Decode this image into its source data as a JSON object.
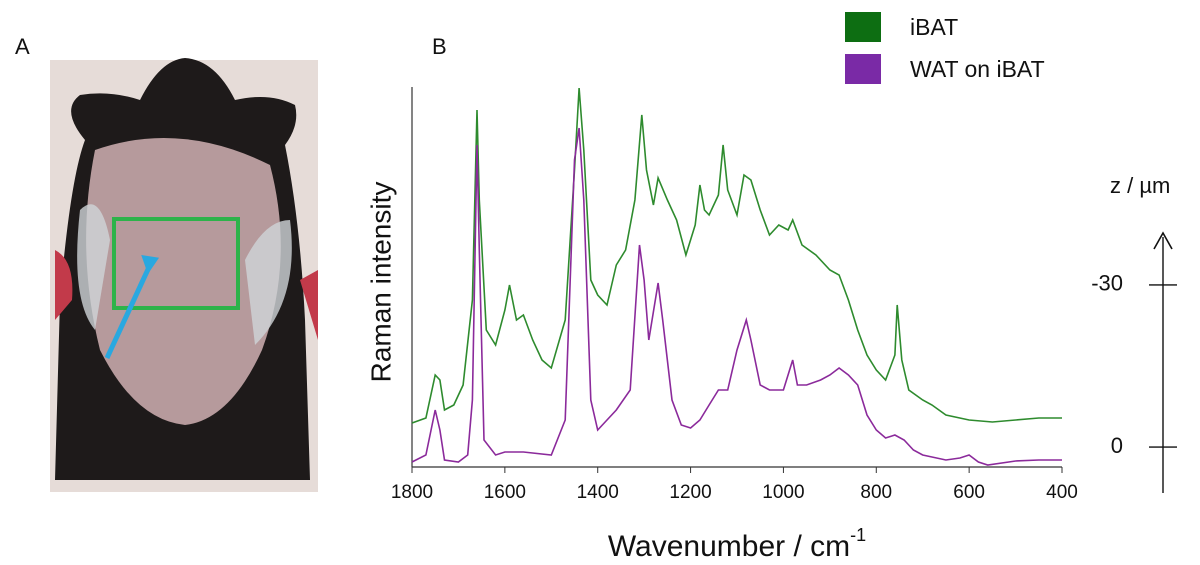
{
  "panel_labels": [
    "A",
    "B"
  ],
  "chart_data": [
    {
      "type": "line",
      "y_label": "Raman intensity",
      "x_label": {
        "text": "Wavenumber / cm",
        "superscript": "-1"
      },
      "xlim": [
        1800,
        400
      ],
      "xticks": [
        1800,
        1600,
        1400,
        1200,
        1000,
        800,
        600,
        400
      ],
      "ylim": [
        0,
        380
      ],
      "series": [
        {
          "name": "iBAT",
          "color": "#2e8b2e",
          "legend_color": "#0d6e12",
          "x": [
            1800,
            1770,
            1750,
            1740,
            1730,
            1710,
            1690,
            1670,
            1660,
            1655,
            1640,
            1620,
            1600,
            1590,
            1575,
            1560,
            1540,
            1520,
            1500,
            1470,
            1450,
            1440,
            1430,
            1415,
            1400,
            1380,
            1360,
            1340,
            1320,
            1305,
            1295,
            1280,
            1270,
            1250,
            1230,
            1210,
            1190,
            1180,
            1170,
            1160,
            1140,
            1130,
            1120,
            1100,
            1085,
            1070,
            1050,
            1030,
            1010,
            990,
            980,
            960,
            930,
            900,
            880,
            860,
            840,
            820,
            800,
            780,
            760,
            755,
            745,
            730,
            700,
            680,
            650,
            600,
            550,
            500,
            450,
            400
          ],
          "values": [
            44,
            49,
            92,
            87,
            57,
            62,
            82,
            167,
            357,
            267,
            137,
            122,
            157,
            182,
            147,
            152,
            127,
            107,
            99,
            147,
            297,
            379,
            317,
            187,
            172,
            162,
            202,
            217,
            267,
            352,
            297,
            262,
            289,
            267,
            247,
            212,
            242,
            282,
            257,
            252,
            272,
            322,
            277,
            252,
            292,
            287,
            257,
            232,
            242,
            237,
            247,
            222,
            212,
            197,
            192,
            167,
            137,
            112,
            97,
            87,
            112,
            162,
            107,
            77,
            67,
            62,
            52,
            47,
            45,
            47,
            49,
            49
          ]
        },
        {
          "name": "WAT on iBAT",
          "color": "#8b2a9b",
          "legend_color": "#7a2aa6",
          "x": [
            1800,
            1770,
            1750,
            1740,
            1730,
            1700,
            1680,
            1670,
            1660,
            1655,
            1645,
            1620,
            1600,
            1560,
            1500,
            1470,
            1450,
            1440,
            1430,
            1415,
            1400,
            1380,
            1360,
            1330,
            1310,
            1300,
            1290,
            1270,
            1260,
            1240,
            1220,
            1200,
            1180,
            1160,
            1140,
            1120,
            1100,
            1080,
            1070,
            1050,
            1030,
            1000,
            980,
            970,
            950,
            920,
            900,
            880,
            860,
            840,
            820,
            800,
            780,
            760,
            740,
            720,
            700,
            650,
            620,
            600,
            580,
            560,
            500,
            450,
            400
          ],
          "values": [
            5,
            12,
            57,
            37,
            7,
            5,
            12,
            67,
            322,
            217,
            27,
            12,
            15,
            15,
            12,
            47,
            307,
            339,
            267,
            67,
            37,
            47,
            57,
            77,
            222,
            187,
            127,
            184,
            147,
            67,
            42,
            39,
            47,
            62,
            77,
            77,
            117,
            147,
            127,
            82,
            77,
            77,
            107,
            82,
            82,
            87,
            92,
            99,
            92,
            82,
            52,
            37,
            29,
            32,
            27,
            17,
            12,
            7,
            9,
            12,
            5,
            2,
            6,
            7,
            7
          ]
        }
      ]
    },
    {
      "type": "scale",
      "y_label": "z / µm",
      "ylim": [
        8.5,
        -39.6
      ],
      "yticks": [
        -30,
        0
      ]
    }
  ]
}
